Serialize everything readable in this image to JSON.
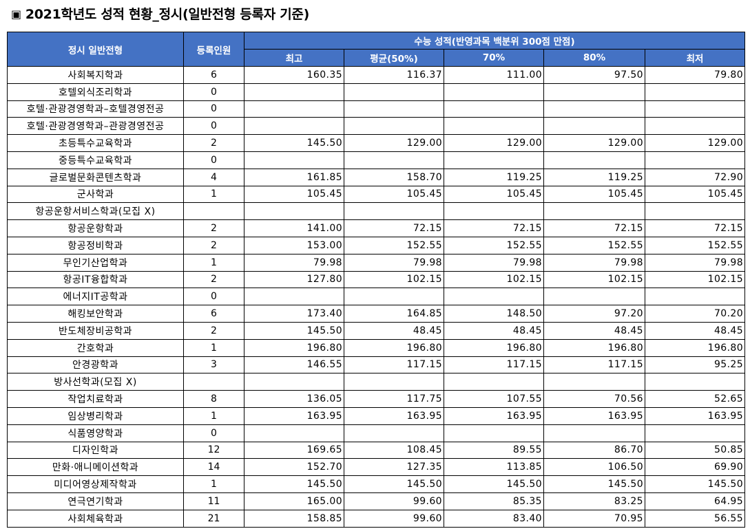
{
  "title": {
    "icon": "square-bullet-icon",
    "glyph": "▣",
    "text": "2021학년도 성적 현황_정시(일반전형 등록자 기준)"
  },
  "table": {
    "header": {
      "dept": "정시 일반전형",
      "enrolled": "등록인원",
      "group": "수능 성적(반영과목 백분위 300점 만점)",
      "cols": [
        "최고",
        "평균(50%)",
        "70%",
        "80%",
        "최저"
      ]
    },
    "header_color": "#4472c4",
    "rows": [
      {
        "name": "사회복지학과",
        "count": "6",
        "max": "160.35",
        "avg": "116.37",
        "p70": "111.00",
        "p80": "97.50",
        "min": "79.80"
      },
      {
        "name": "호텔외식조리학과",
        "count": "0",
        "max": "",
        "avg": "",
        "p70": "",
        "p80": "",
        "min": ""
      },
      {
        "name": "호텔·관광경영학과–호텔경영전공",
        "count": "0",
        "max": "",
        "avg": "",
        "p70": "",
        "p80": "",
        "min": ""
      },
      {
        "name": "호텔·관광경영학과–관광경영전공",
        "count": "0",
        "max": "",
        "avg": "",
        "p70": "",
        "p80": "",
        "min": ""
      },
      {
        "name": "초등특수교육학과",
        "count": "2",
        "max": "145.50",
        "avg": "129.00",
        "p70": "129.00",
        "p80": "129.00",
        "min": "129.00"
      },
      {
        "name": "중등특수교육학과",
        "count": "0",
        "max": "",
        "avg": "",
        "p70": "",
        "p80": "",
        "min": ""
      },
      {
        "name": "글로벌문화콘텐츠학과",
        "count": "4",
        "max": "161.85",
        "avg": "158.70",
        "p70": "119.25",
        "p80": "119.25",
        "min": "72.90"
      },
      {
        "name": "군사학과",
        "count": "1",
        "max": "105.45",
        "avg": "105.45",
        "p70": "105.45",
        "p80": "105.45",
        "min": "105.45"
      },
      {
        "name": "항공운항서비스학과(모집 X)",
        "count": "",
        "max": "",
        "avg": "",
        "p70": "",
        "p80": "",
        "min": ""
      },
      {
        "name": "항공운항학과",
        "count": "2",
        "max": "141.00",
        "avg": "72.15",
        "p70": "72.15",
        "p80": "72.15",
        "min": "72.15"
      },
      {
        "name": "항공정비학과",
        "count": "2",
        "max": "153.00",
        "avg": "152.55",
        "p70": "152.55",
        "p80": "152.55",
        "min": "152.55"
      },
      {
        "name": "무인기산업학과",
        "count": "1",
        "max": "79.98",
        "avg": "79.98",
        "p70": "79.98",
        "p80": "79.98",
        "min": "79.98"
      },
      {
        "name": "항공IT융합학과",
        "count": "2",
        "max": "127.80",
        "avg": "102.15",
        "p70": "102.15",
        "p80": "102.15",
        "min": "102.15"
      },
      {
        "name": "에너지IT공학과",
        "count": "0",
        "max": "",
        "avg": "",
        "p70": "",
        "p80": "",
        "min": ""
      },
      {
        "name": "해킹보안학과",
        "count": "6",
        "max": "173.40",
        "avg": "164.85",
        "p70": "148.50",
        "p80": "97.20",
        "min": "70.20"
      },
      {
        "name": "반도체장비공학과",
        "count": "2",
        "max": "145.50",
        "avg": "48.45",
        "p70": "48.45",
        "p80": "48.45",
        "min": "48.45"
      },
      {
        "name": "간호학과",
        "count": "1",
        "max": "196.80",
        "avg": "196.80",
        "p70": "196.80",
        "p80": "196.80",
        "min": "196.80"
      },
      {
        "name": "안경광학과",
        "count": "3",
        "max": "146.55",
        "avg": "117.15",
        "p70": "117.15",
        "p80": "117.15",
        "min": "95.25"
      },
      {
        "name": "방사선학과(모집 X)",
        "count": "",
        "max": "",
        "avg": "",
        "p70": "",
        "p80": "",
        "min": ""
      },
      {
        "name": "작업치료학과",
        "count": "8",
        "max": "136.05",
        "avg": "117.75",
        "p70": "107.55",
        "p80": "70.56",
        "min": "52.65"
      },
      {
        "name": "임상병리학과",
        "count": "1",
        "max": "163.95",
        "avg": "163.95",
        "p70": "163.95",
        "p80": "163.95",
        "min": "163.95"
      },
      {
        "name": "식품영양학과",
        "count": "0",
        "max": "",
        "avg": "",
        "p70": "",
        "p80": "",
        "min": ""
      },
      {
        "name": "디자인학과",
        "count": "12",
        "max": "169.65",
        "avg": "108.45",
        "p70": "89.55",
        "p80": "86.70",
        "min": "50.85"
      },
      {
        "name": "만화·애니메이션학과",
        "count": "14",
        "max": "152.70",
        "avg": "127.35",
        "p70": "113.85",
        "p80": "106.50",
        "min": "69.90"
      },
      {
        "name": "미디어영상제작학과",
        "count": "1",
        "max": "145.50",
        "avg": "145.50",
        "p70": "145.50",
        "p80": "145.50",
        "min": "145.50"
      },
      {
        "name": "연극연기학과",
        "count": "11",
        "max": "165.00",
        "avg": "99.60",
        "p70": "85.35",
        "p80": "83.25",
        "min": "64.95"
      },
      {
        "name": "사회체육학과",
        "count": "21",
        "max": "158.85",
        "avg": "99.60",
        "p70": "83.40",
        "p80": "70.95",
        "min": "56.55"
      }
    ]
  }
}
